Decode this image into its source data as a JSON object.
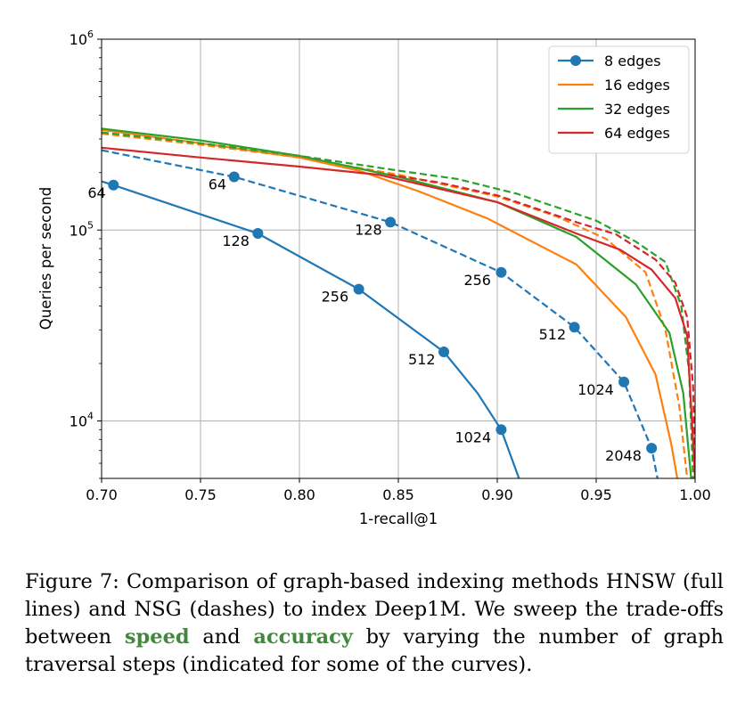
{
  "chart_data": {
    "type": "line",
    "xlabel": "1-recall@1",
    "ylabel": "Queries per second",
    "xlim": [
      0.7,
      1.0
    ],
    "ylim": [
      5000,
      1000000
    ],
    "yscale": "log",
    "grid": true,
    "legend_position": "top-right",
    "xticks": [
      {
        "v": 0.7,
        "label": "0.70"
      },
      {
        "v": 0.75,
        "label": "0.75"
      },
      {
        "v": 0.8,
        "label": "0.80"
      },
      {
        "v": 0.85,
        "label": "0.85"
      },
      {
        "v": 0.9,
        "label": "0.90"
      },
      {
        "v": 0.95,
        "label": "0.95"
      },
      {
        "v": 1.0,
        "label": "1.00"
      }
    ],
    "yticks": [
      {
        "v": 10000,
        "base": "10",
        "exp": "4"
      },
      {
        "v": 100000,
        "base": "10",
        "exp": "5"
      },
      {
        "v": 1000000,
        "base": "10",
        "exp": "6"
      }
    ],
    "series": [
      {
        "name": "8 edges",
        "method": "HNSW",
        "color": "#1f77b4",
        "dash": false,
        "marker": true,
        "points": [
          [
            0.7,
            180000
          ],
          [
            0.706,
            172000
          ],
          [
            0.779,
            96000
          ],
          [
            0.83,
            49000
          ],
          [
            0.873,
            23000
          ],
          [
            0.89,
            14000
          ],
          [
            0.902,
            9000
          ],
          [
            0.911,
            5000
          ]
        ],
        "annotations": [
          {
            "label": "64",
            "x": 0.706,
            "y": 172000,
            "dx": -29,
            "dy": 14
          },
          {
            "label": "128",
            "x": 0.779,
            "y": 96000,
            "dx": -40,
            "dy": 14
          },
          {
            "label": "256",
            "x": 0.83,
            "y": 49000,
            "dx": -42,
            "dy": 14
          },
          {
            "label": "512",
            "x": 0.873,
            "y": 23000,
            "dx": -40,
            "dy": 14
          },
          {
            "label": "1024",
            "x": 0.902,
            "y": 9000,
            "dx": -52,
            "dy": 14
          }
        ]
      },
      {
        "name": "",
        "method": "NSG",
        "color": "#1f77b4",
        "dash": true,
        "marker": true,
        "points": [
          [
            0.7,
            262000
          ],
          [
            0.767,
            190000
          ],
          [
            0.846,
            110000
          ],
          [
            0.902,
            60000
          ],
          [
            0.939,
            31000
          ],
          [
            0.964,
            16000
          ],
          [
            0.978,
            7200
          ],
          [
            0.981,
            5000
          ]
        ],
        "annotations": [
          {
            "label": "64",
            "x": 0.767,
            "y": 190000,
            "dx": -29,
            "dy": 14
          },
          {
            "label": "128",
            "x": 0.846,
            "y": 110000,
            "dx": -40,
            "dy": 14
          },
          {
            "label": "256",
            "x": 0.902,
            "y": 60000,
            "dx": -42,
            "dy": 14
          },
          {
            "label": "512",
            "x": 0.939,
            "y": 31000,
            "dx": -40,
            "dy": 14
          },
          {
            "label": "1024",
            "x": 0.964,
            "y": 16000,
            "dx": -52,
            "dy": 14
          },
          {
            "label": "2048",
            "x": 0.978,
            "y": 7200,
            "dx": -52,
            "dy": 14
          }
        ]
      },
      {
        "name": "16 edges",
        "method": "HNSW",
        "color": "#ff7f0e",
        "dash": false,
        "marker": false,
        "points": [
          [
            0.7,
            335000
          ],
          [
            0.75,
            285000
          ],
          [
            0.8,
            240000
          ],
          [
            0.83,
            205000
          ],
          [
            0.86,
            160000
          ],
          [
            0.895,
            115000
          ],
          [
            0.94,
            66000
          ],
          [
            0.965,
            35000
          ],
          [
            0.98,
            17500
          ],
          [
            0.988,
            7500
          ],
          [
            0.991,
            5000
          ]
        ],
        "annotations": []
      },
      {
        "name": "",
        "method": "NSG",
        "color": "#ff7f0e",
        "dash": true,
        "marker": false,
        "points": [
          [
            0.7,
            320000
          ],
          [
            0.75,
            280000
          ],
          [
            0.8,
            240000
          ],
          [
            0.85,
            195000
          ],
          [
            0.9,
            150000
          ],
          [
            0.93,
            118000
          ],
          [
            0.955,
            90000
          ],
          [
            0.975,
            60000
          ],
          [
            0.985,
            30000
          ],
          [
            0.992,
            12000
          ],
          [
            0.996,
            5000
          ]
        ],
        "annotations": []
      },
      {
        "name": "32 edges",
        "method": "HNSW",
        "color": "#2ca02c",
        "dash": false,
        "marker": false,
        "points": [
          [
            0.7,
            340000
          ],
          [
            0.75,
            295000
          ],
          [
            0.8,
            245000
          ],
          [
            0.85,
            190000
          ],
          [
            0.9,
            140000
          ],
          [
            0.94,
            92000
          ],
          [
            0.97,
            52000
          ],
          [
            0.987,
            29000
          ],
          [
            0.994,
            14000
          ],
          [
            0.998,
            5000
          ]
        ],
        "annotations": []
      },
      {
        "name": "",
        "method": "NSG",
        "color": "#2ca02c",
        "dash": true,
        "marker": false,
        "points": [
          [
            0.7,
            325000
          ],
          [
            0.75,
            285000
          ],
          [
            0.8,
            245000
          ],
          [
            0.85,
            205000
          ],
          [
            0.88,
            185000
          ],
          [
            0.91,
            155000
          ],
          [
            0.95,
            112000
          ],
          [
            0.97,
            87000
          ],
          [
            0.985,
            68000
          ],
          [
            0.993,
            40000
          ],
          [
            0.997,
            18000
          ],
          [
            0.999,
            5000
          ]
        ],
        "annotations": []
      },
      {
        "name": "64 edges",
        "method": "HNSW",
        "color": "#d62728",
        "dash": false,
        "marker": false,
        "points": [
          [
            0.7,
            270000
          ],
          [
            0.75,
            240000
          ],
          [
            0.8,
            215000
          ],
          [
            0.84,
            195000
          ],
          [
            0.9,
            140000
          ],
          [
            0.94,
            96000
          ],
          [
            0.962,
            79000
          ],
          [
            0.978,
            62000
          ],
          [
            0.99,
            44000
          ],
          [
            0.996,
            28000
          ],
          [
            1.0,
            5000
          ]
        ],
        "annotations": []
      },
      {
        "name": "",
        "method": "NSG",
        "color": "#d62728",
        "dash": true,
        "marker": false,
        "points": [
          [
            0.845,
            195000
          ],
          [
            0.87,
            178000
          ],
          [
            0.9,
            152000
          ],
          [
            0.94,
            110000
          ],
          [
            0.96,
            95000
          ],
          [
            0.98,
            70000
          ],
          [
            0.99,
            53000
          ],
          [
            0.996,
            35000
          ],
          [
            0.999,
            15000
          ],
          [
            1.0,
            5000
          ]
        ],
        "annotations": []
      }
    ]
  },
  "caption": {
    "text_1": "Figure 7: Comparison of graph-based indexing methods HNSW (full lines) and NSG (dashes) to index Deep1M. We sweep the trade-offs between ",
    "kw_speed": "speed",
    "text_2": " and ",
    "kw_accuracy": "accuracy",
    "text_3": " by varying the number of graph traversal steps (indicated for some of the curves)."
  }
}
